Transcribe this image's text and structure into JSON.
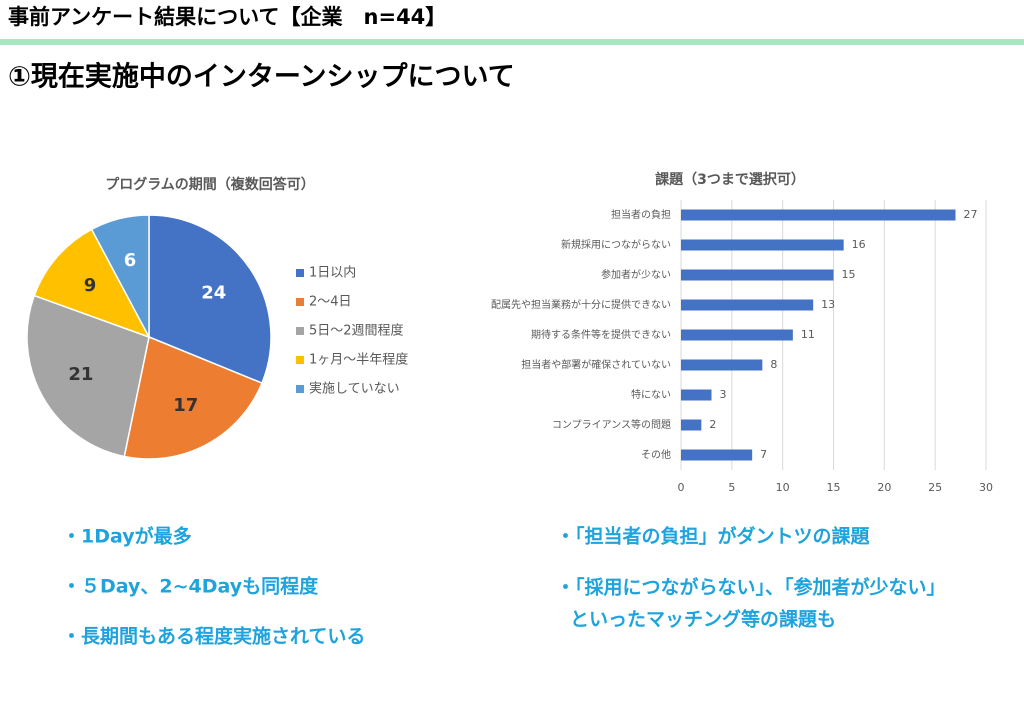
{
  "header": {
    "title": "事前アンケート結果について【企業　n=44】",
    "subtitle": "①現在実施中のインターンシップについて"
  },
  "chart_data": [
    {
      "type": "pie",
      "title": "プログラムの期間（複数回答可）",
      "categories": [
        "1日以内",
        "2～4日",
        "5日～2週間程度",
        "1ヶ月～半年程度",
        "実施していない"
      ],
      "values": [
        24,
        17,
        21,
        9,
        6
      ],
      "colors": [
        "#4472c4",
        "#ed7d31",
        "#a5a5a5",
        "#ffc000",
        "#5b9bd5"
      ],
      "label_colors": [
        "#ffffff",
        "#333333",
        "#333333",
        "#333333",
        "#ffffff"
      ],
      "legend": "right"
    },
    {
      "type": "barh",
      "title": "課題（3つまで選択可）",
      "categories": [
        "担当者の負担",
        "新規採用につながらない",
        "参加者が少ない",
        "配属先や担当業務が十分に提供できない",
        "期待する条件等を提供できない",
        "担当者や部署が確保されていない",
        "特にない",
        "コンプライアンス等の問題",
        "その他"
      ],
      "values": [
        27,
        16,
        15,
        13,
        11,
        8,
        3,
        2,
        7
      ],
      "color": "#4472c4",
      "xlim": [
        0,
        30
      ],
      "xticks": [
        0,
        5,
        10,
        15,
        20,
        25,
        30
      ],
      "grid": true
    }
  ],
  "notes": {
    "left": [
      "・1Dayが最多",
      "・５Day、2~4Dayも同程度",
      "・長期間もある程度実施されている"
    ],
    "right": [
      "・「担当者の負担」がダントツの課題",
      "・「採用につながらない」、「参加者が少ない」",
      "といったマッチング等の課題も"
    ]
  }
}
